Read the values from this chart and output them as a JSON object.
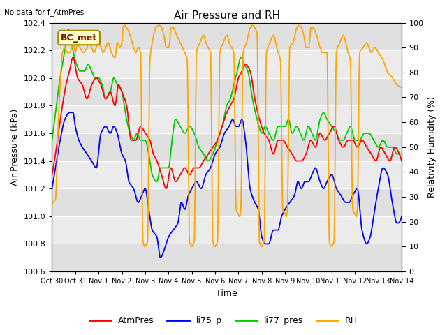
{
  "title": "Air Pressure and RH",
  "top_left_text": "No data for f_AtmPres",
  "station_label": "BC_met",
  "xlabel": "Time",
  "ylabel_left": "Air Pressure (kPa)",
  "ylabel_right": "Relativity Humidity (%)",
  "ylim_left": [
    100.6,
    102.4
  ],
  "ylim_right": [
    0,
    100
  ],
  "yticks_left": [
    100.6,
    100.8,
    101.0,
    101.2,
    101.4,
    101.6,
    101.8,
    102.0,
    102.2,
    102.4
  ],
  "yticks_right": [
    0,
    10,
    20,
    30,
    40,
    50,
    60,
    70,
    80,
    90,
    100
  ],
  "xtick_labels": [
    "Oct 30",
    "Oct 31",
    "Nov 1",
    "Nov 2",
    "Nov 3",
    "Nov 4",
    "Nov 5",
    "Nov 6",
    "Nov 7",
    "Nov 8",
    "Nov 9",
    "Nov 10",
    "Nov 11",
    "Nov 12",
    "Nov 13",
    "Nov 14"
  ],
  "colors": {
    "AtmPres": "#ff0000",
    "li75_p": "#0000ff",
    "li77_pres": "#00cc00",
    "RH": "#ffa500"
  },
  "background_color": "#ffffff",
  "plot_bg_stripe1": "#e0e0e0",
  "plot_bg_stripe2": "#ebebeb",
  "linewidth": 1.3
}
